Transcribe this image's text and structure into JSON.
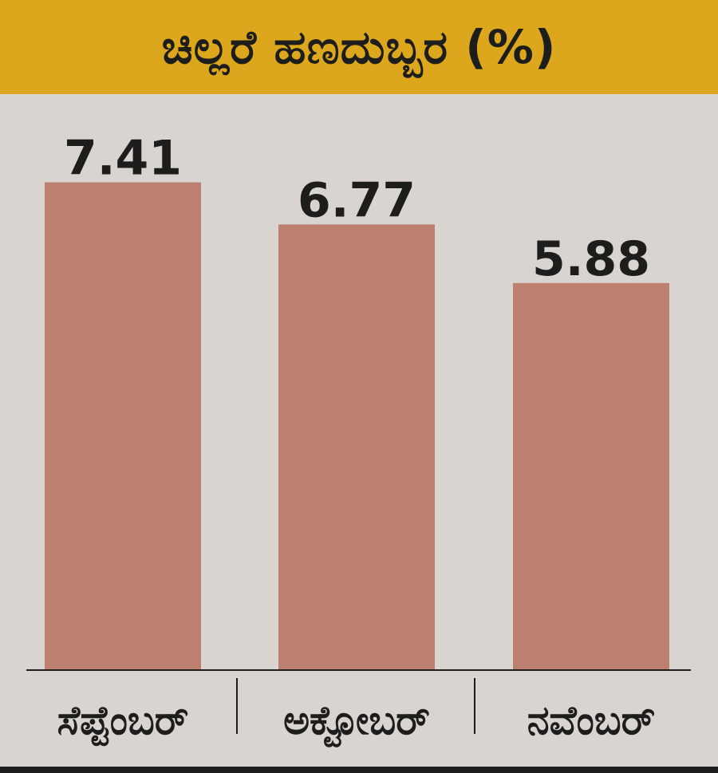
{
  "chart_data": {
    "type": "bar",
    "title": "ಚಿಲ್ಲರೆ ಹಣದುಬ್ಬರ (%)",
    "categories": [
      "ಸೆಪ್ಟೆಂಬರ್",
      "ಅಕ್ಟೋಬರ್",
      "ನವೆಂಬರ್"
    ],
    "values": [
      7.41,
      6.77,
      5.88
    ],
    "value_labels": [
      "7.41",
      "6.77",
      "5.88"
    ],
    "ylim": [
      0,
      8.75
    ],
    "bar_color": "#bd7f6f",
    "grid": false,
    "legend": "none"
  },
  "colors": {
    "header_background": "#dda71d",
    "background": "#d9d4cf",
    "text": "#1d1d1b"
  }
}
